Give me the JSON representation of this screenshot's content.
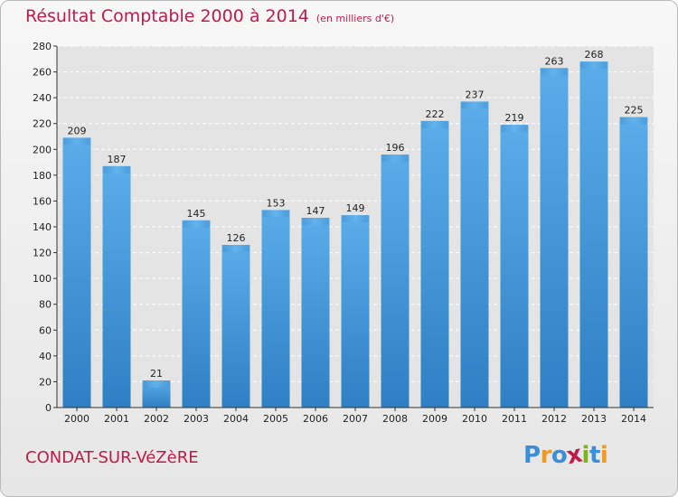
{
  "title": "Résultat Comptable 2000 à 2014",
  "subtitle": "(en milliers d'€)",
  "place": "CONDAT-SUR-VéZèRE",
  "logo": {
    "text": "Proxiti",
    "letters": [
      "P",
      "r",
      "o",
      "x",
      "i",
      "t",
      "i"
    ],
    "colors": [
      "#3b8ed8",
      "#f19a1e",
      "#3b8ed8",
      "#c21a47",
      "#7ab51d",
      "#3b8ed8",
      "#f19a1e"
    ]
  },
  "colors": {
    "bar": "#4a9ee0",
    "title": "#c21a47"
  },
  "chart_data": {
    "type": "bar",
    "title": "Résultat Comptable 2000 à 2014",
    "categories": [
      "2000",
      "2001",
      "2002",
      "2003",
      "2004",
      "2005",
      "2006",
      "2007",
      "2008",
      "2009",
      "2010",
      "2011",
      "2012",
      "2013",
      "2014"
    ],
    "values": [
      209,
      187,
      21,
      145,
      126,
      153,
      147,
      149,
      196,
      222,
      237,
      219,
      263,
      268,
      225
    ],
    "ylim": [
      0,
      280
    ],
    "yticks": [
      0,
      20,
      40,
      60,
      80,
      100,
      120,
      140,
      160,
      180,
      200,
      220,
      240,
      260,
      280
    ],
    "grid": true,
    "xlabel": "",
    "ylabel": ""
  }
}
